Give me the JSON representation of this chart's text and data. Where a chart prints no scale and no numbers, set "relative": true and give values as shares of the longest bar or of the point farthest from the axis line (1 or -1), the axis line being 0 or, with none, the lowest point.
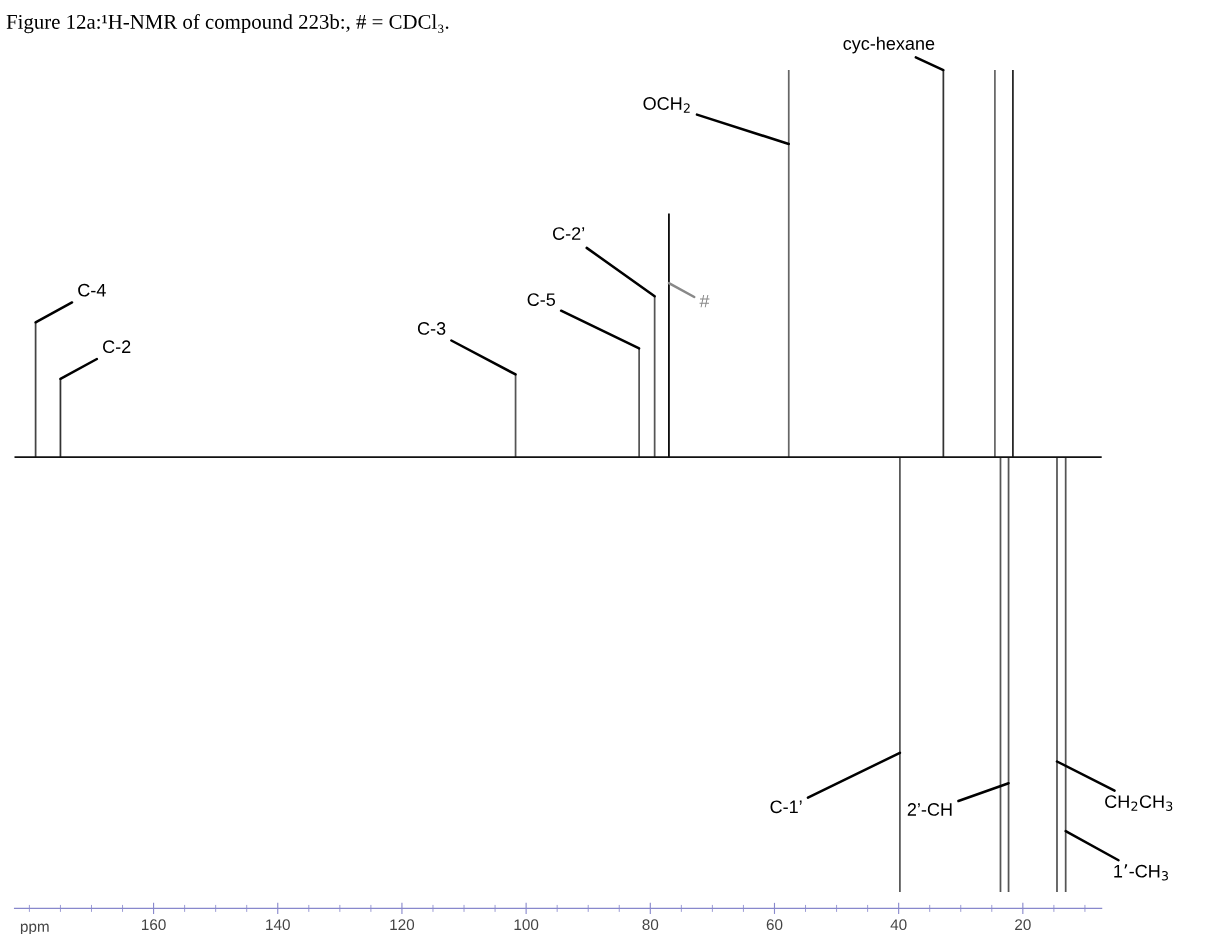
{
  "chart_data": {
    "type": "bar",
    "title": "Figure 12a:¹H-NMR of compound 223b:, # = CDCl₃.",
    "xlabel": "ppm",
    "relative": true,
    "x": [
      179.0,
      175.0,
      101.7,
      81.8,
      79.3,
      77.0,
      57.7,
      39.8,
      32.8,
      24.5,
      23.6,
      22.3,
      21.6,
      14.5,
      13.1
    ],
    "values": [
      0.31,
      0.18,
      0.19,
      0.25,
      0.37,
      0.56,
      0.89,
      -1,
      0.89,
      0.89,
      -1,
      -1,
      0.89,
      -1,
      -1
    ],
    "colors": [
      "#444444",
      "#333333",
      "#555555",
      "#555555",
      "#555555",
      "#000000",
      "#666666",
      "#555555",
      "#333333",
      "#666666",
      "#555555",
      "#555555",
      "#222222",
      "#555555",
      "#555555"
    ],
    "xlim": [
      182.4,
      7.3
    ],
    "xticks": [
      160,
      140,
      120,
      100,
      80,
      60,
      40,
      20
    ],
    "tick_labels": "x",
    "grid": false,
    "annotations": [
      {
        "text": "C-4",
        "x": 179.0,
        "y": 0.31
      },
      {
        "text": "C-2",
        "x": 175.0,
        "y": 0.18
      },
      {
        "text": "C-3",
        "x": 101.7,
        "y": 0.19
      },
      {
        "text": "C-5",
        "x": 81.8,
        "y": 0.25
      },
      {
        "text": "C-2’",
        "x": 79.3,
        "y": 0.37
      },
      {
        "text": "#",
        "x": 77.0,
        "y": 0.4
      },
      {
        "text": "OCH$_{2}$",
        "x": 57.7,
        "y": 0.72
      },
      {
        "text": "cyc-hexane",
        "x": 32.8,
        "y": 0.89
      },
      {
        "text": "C-1’",
        "x": 39.8,
        "y": -0.68
      },
      {
        "text": "2’-CH",
        "x": 22.3,
        "y": -0.75
      },
      {
        "text": "CH$_{2}$CH$_{3}$",
        "x": 14.5,
        "y": -0.7
      },
      {
        "text": "1’-CH$_{3}$",
        "x": 13.1,
        "y": -0.86
      }
    ]
  }
}
